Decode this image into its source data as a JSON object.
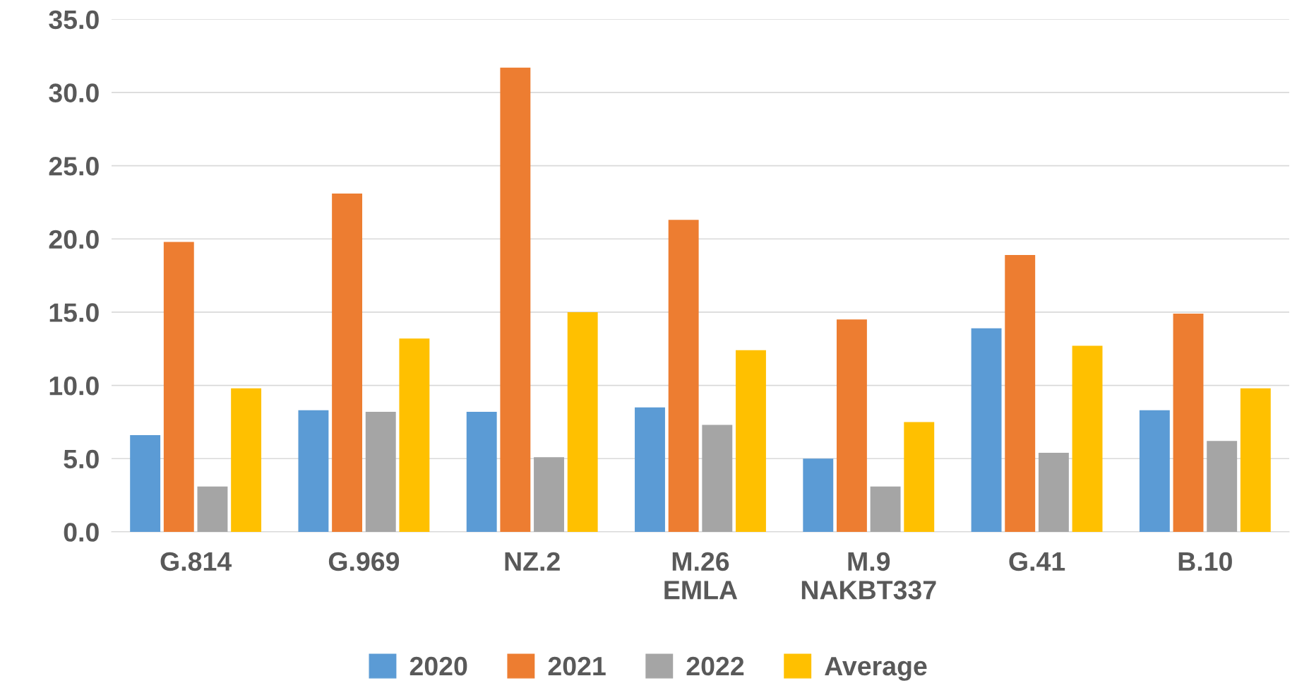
{
  "chart_data": {
    "type": "bar",
    "categories": [
      "G.814",
      "G.969",
      "NZ.2",
      "M.26\nEMLA",
      "M.9\nNAKBT337",
      "G.41",
      "B.10"
    ],
    "series": [
      {
        "name": "2020",
        "color": "#5b9bd5",
        "values": [
          6.6,
          8.3,
          8.2,
          8.5,
          5.0,
          13.9,
          8.3
        ]
      },
      {
        "name": "2021",
        "color": "#ed7d31",
        "values": [
          19.8,
          23.1,
          31.7,
          21.3,
          14.5,
          18.9,
          14.9
        ]
      },
      {
        "name": "2022",
        "color": "#a5a5a5",
        "values": [
          3.1,
          8.2,
          5.1,
          7.3,
          3.1,
          5.4,
          6.2
        ]
      },
      {
        "name": "Average",
        "color": "#ffc000",
        "values": [
          9.8,
          13.2,
          15.0,
          12.4,
          7.5,
          12.7,
          9.8
        ]
      }
    ],
    "ylim": [
      0,
      35
    ],
    "yticks": [
      {
        "value": 0,
        "label": "0.0"
      },
      {
        "value": 5,
        "label": "5.0"
      },
      {
        "value": 10,
        "label": "10.0"
      },
      {
        "value": 15,
        "label": "15.0"
      },
      {
        "value": 20,
        "label": "20.0"
      },
      {
        "value": 25,
        "label": "25.0"
      },
      {
        "value": 30,
        "label": "30.0"
      },
      {
        "value": 35,
        "label": "35.0"
      }
    ],
    "grid": "y",
    "legend": "bottom"
  }
}
